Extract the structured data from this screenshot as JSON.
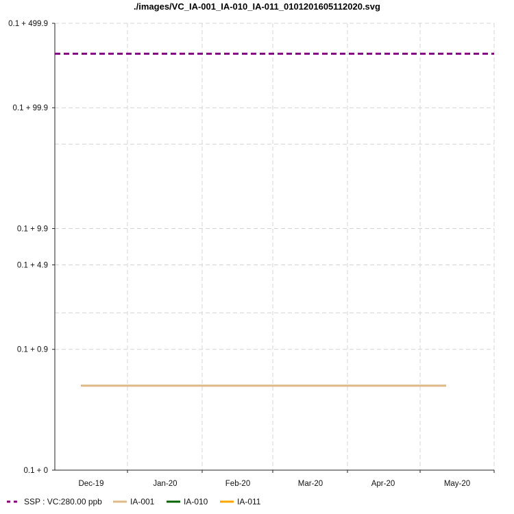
{
  "chart_data": {
    "type": "line",
    "title": "./images/VC_IA-001_IA-010_IA-011_0101201605112020.svg",
    "xlabel": "",
    "ylabel": "",
    "y_scale": "log",
    "y_ticks": [
      {
        "value": 0.1,
        "label": "0.1 + 0"
      },
      {
        "value": 1.0,
        "label": "0.1 + 0.9"
      },
      {
        "value": 5.0,
        "label": "0.1 + 4.9"
      },
      {
        "value": 10.0,
        "label": "0.1 + 9.9"
      },
      {
        "value": 100.0,
        "label": "0.1 + 99.9"
      },
      {
        "value": 500.0,
        "label": "0.1 + 499.9"
      }
    ],
    "y_minor_gridlines": [
      2.0,
      50.0
    ],
    "ylim": [
      0.1,
      500.0
    ],
    "x_ticks": [
      "Dec-19",
      "Jan-20",
      "Feb-20",
      "Mar-20",
      "Apr-20",
      "May-20"
    ],
    "grid": true,
    "legend_position": "bottom",
    "series": [
      {
        "name": "SSP : VC:280.00 ppb",
        "color": "#800080",
        "style": "dashed",
        "x": [
          "Dec-19",
          "end"
        ],
        "values": [
          280,
          280
        ]
      },
      {
        "name": "IA-001",
        "color": "#DEB887",
        "style": "solid",
        "x": [
          "Dec-19",
          "May-20"
        ],
        "values": [
          0.5,
          0.5
        ]
      },
      {
        "name": "IA-010",
        "color": "#006400",
        "style": "solid",
        "x": [],
        "values": []
      },
      {
        "name": "IA-011",
        "color": "#FFA500",
        "style": "solid",
        "x": [],
        "values": []
      }
    ]
  }
}
